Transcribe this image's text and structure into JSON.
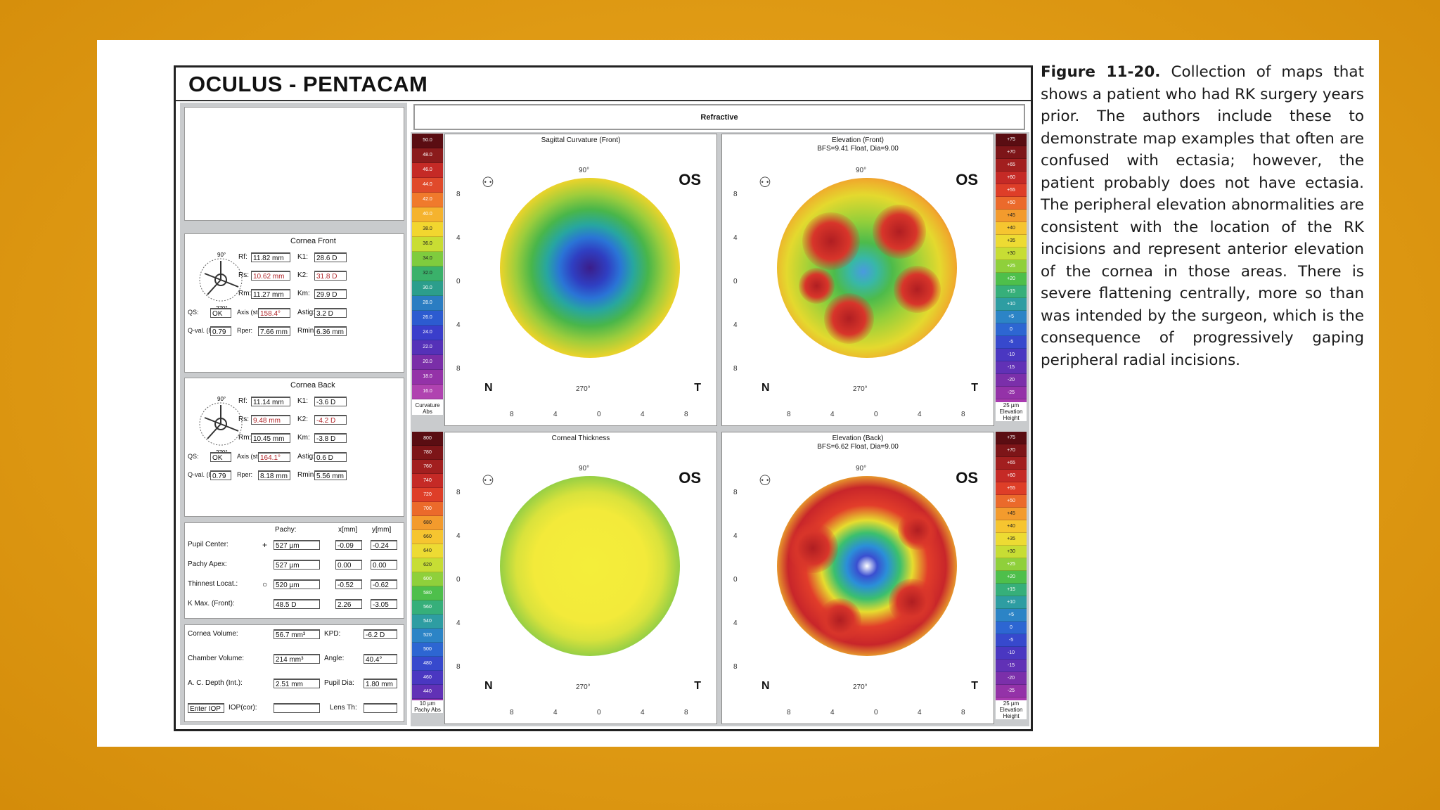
{
  "brand": "OCULUS - PENTACAM",
  "retro_band": "Refractive",
  "caption": {
    "label": "Figure 11-20.",
    "text": "Collection of maps that shows a patient who had RK surgery years prior. The authors include these to demonstrate map examples that often are confused with ectasia; however, the patient probably does not have ectasia. The peripheral elevation abnormalities are consistent with the location of the RK incisions and represent anterior elevation of the cornea in those areas. There is severe flattening centrally, more so than was intended by the surgeon, which is the consequence of progressively gaping peripheral radial incisions."
  },
  "cornea_front": {
    "title": "Cornea Front",
    "rows": [
      {
        "l1": "Rf:",
        "v1": "11.82 mm",
        "l2": "K1:",
        "v2": "28.6 D"
      },
      {
        "l1": "Rs:",
        "v1": "10.62 mm",
        "l2": "K2:",
        "v2": "31.8 D"
      },
      {
        "l1": "Rm:",
        "v1": "11.27 mm",
        "l2": "Km:",
        "v2": "29.9 D"
      },
      {
        "l1": "QS:",
        "v1": "OK",
        "l2": "Axis (steep):",
        "v2": "158.4°",
        "l3": "Astig:",
        "v3": "3.2 D"
      },
      {
        "l1": "Q-val. (8mm):",
        "v1": "0.79",
        "l2": "Rper:",
        "v2": "7.66 mm",
        "l3": "Rmin:",
        "v3": "6.36 mm"
      }
    ]
  },
  "cornea_back": {
    "title": "Cornea Back",
    "rows": [
      {
        "l1": "Rf:",
        "v1": "11.14 mm",
        "l2": "K1:",
        "v2": "-3.6 D"
      },
      {
        "l1": "Rs:",
        "v1": "9.48 mm",
        "l2": "K2:",
        "v2": "-4.2 D"
      },
      {
        "l1": "Rm:",
        "v1": "10.45 mm",
        "l2": "Km:",
        "v2": "-3.8 D"
      },
      {
        "l1": "QS:",
        "v1": "OK",
        "l2": "Axis (steep):",
        "v2": "164.1°",
        "l3": "Astig:",
        "v3": "0.6 D"
      },
      {
        "l1": "Q-val. (8mm):",
        "v1": "0.79",
        "l2": "Rper:",
        "v2": "8.18 mm",
        "l3": "Rmin:",
        "v3": "5.56 mm"
      }
    ]
  },
  "pachy": {
    "head_pachy": "Pachy:",
    "head_x": "x[mm]",
    "head_y": "y[mm]",
    "rows": [
      {
        "label": "Pupil Center:",
        "sym": "+",
        "p": "527 µm",
        "x": "-0.09",
        "y": "-0.24"
      },
      {
        "label": "Pachy Apex:",
        "sym": "",
        "p": "527 µm",
        "x": "0.00",
        "y": "0.00"
      },
      {
        "label": "Thinnest Locat.:",
        "sym": "○",
        "p": "520 µm",
        "x": "-0.52",
        "y": "-0.62"
      },
      {
        "label": "K Max. (Front):",
        "sym": "",
        "p": "48.5 D",
        "x": "2.26",
        "y": "-3.05"
      }
    ]
  },
  "volumes": {
    "rows": [
      {
        "l1": "Cornea Volume:",
        "v1": "56.7 mm³",
        "l2": "KPD:",
        "v2": "-6.2 D"
      },
      {
        "l1": "Chamber Volume:",
        "v1": "214 mm³",
        "l2": "Angle:",
        "v2": "40.4°"
      },
      {
        "l1": "A. C. Depth (Int.):",
        "v1": "2.51 mm",
        "l2": "Pupil Dia:",
        "v2": "1.80 mm"
      },
      {
        "l1": "Enter IOP",
        "v1": "IOP(cor):",
        "l2": "Lens Th:",
        "v2": ""
      }
    ]
  },
  "maps": [
    {
      "id": "sagittal",
      "title": "Sagittal Curvature (Front)",
      "subtitle": "",
      "os": "OS",
      "n": "N",
      "t": "T",
      "deg_top": "90°",
      "deg_bot": "270°",
      "scale_cap": "Curvature Abs",
      "scale_head": "0"
    },
    {
      "id": "elev-front",
      "title": "Elevation (Front)",
      "subtitle": "BFS=9.41 Float, Dia=9.00",
      "os": "OS",
      "n": "N",
      "t": "T",
      "deg_top": "90°",
      "deg_bot": "270°",
      "scale_cap": "25 µm Elevation Height",
      "scale_head": ""
    },
    {
      "id": "thickness",
      "title": "Corneal Thickness",
      "subtitle": "",
      "os": "OS",
      "n": "N",
      "t": "T",
      "deg_top": "90°",
      "deg_bot": "270°",
      "scale_cap": "10 µm Pachy Abs",
      "scale_head": ""
    },
    {
      "id": "elev-back",
      "title": "Elevation (Back)",
      "subtitle": "BFS=6.62 Float, Dia=9.00",
      "os": "OS",
      "n": "N",
      "t": "T",
      "deg_top": "90°",
      "deg_bot": "270°",
      "scale_cap": "25 µm Elevation Height",
      "scale_head": ""
    }
  ],
  "scales": {
    "curv": [
      "50.0",
      "48.0",
      "46.0",
      "44.0",
      "42.0",
      "40.0",
      "38.0",
      "36.0",
      "34.0",
      "32.0",
      "30.0",
      "28.0",
      "26.0",
      "24.0",
      "22.0",
      "20.0",
      "18.0",
      "16.0",
      "0"
    ],
    "elev": [
      "+75",
      "+70",
      "+65",
      "+60",
      "+55",
      "+50",
      "+45",
      "+40",
      "+35",
      "+30",
      "+25",
      "+20",
      "+15",
      "+10",
      "+5",
      "0",
      "-5",
      "-10",
      "-15",
      "-20",
      "-25",
      "-30"
    ],
    "pachy": [
      "800",
      "780",
      "760",
      "740",
      "720",
      "700",
      "680",
      "660",
      "640",
      "620",
      "600",
      "580",
      "560",
      "540",
      "520",
      "500",
      "480",
      "460",
      "440",
      "420"
    ]
  },
  "ticks": [
    "8",
    "4",
    "0",
    "4",
    "8"
  ],
  "colors": {
    "bg": "#e09b15",
    "border": "#222222",
    "red_value": "#b0262a"
  }
}
